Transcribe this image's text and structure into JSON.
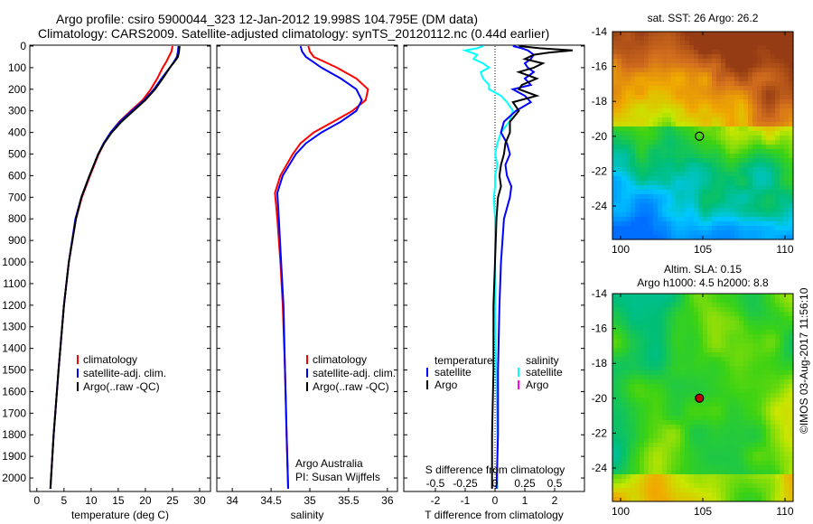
{
  "title_line1": "Argo profile: csiro 5900044_323 12-Jan-2012 19.998S 104.795E (DM data)",
  "title_line2": "Climatology: CARS2009. Satellite-adjusted climatology: synTS_20120112.nc (0.44d earlier)",
  "stamp": "©IMOS 03-Aug-2017 11:56:10",
  "colors": {
    "climatology": "#ff0000",
    "satellite": "#0000ff",
    "argo": "#000000",
    "sal_satellite": "#00ffff",
    "sal_argo": "#ff00ff"
  },
  "chart_data": [
    {
      "type": "line",
      "xlabel": "temperature (deg C)",
      "ylabel": "",
      "xlim": [
        -1.3,
        32
      ],
      "ylim": [
        2050,
        0
      ],
      "xticks": [
        0,
        5,
        10,
        15,
        20,
        25,
        30
      ],
      "yticks": [
        0,
        100,
        200,
        300,
        400,
        500,
        600,
        700,
        800,
        900,
        1000,
        1100,
        1200,
        1300,
        1400,
        1500,
        1600,
        1700,
        1800,
        1900,
        2000
      ],
      "legend": [
        "climatology",
        "satellite-adj. clim.",
        "Argo(..raw -QC)"
      ],
      "depth": [
        0,
        25,
        50,
        75,
        100,
        150,
        200,
        250,
        300,
        350,
        400,
        450,
        500,
        600,
        700,
        800,
        1000,
        1200,
        1500,
        1800,
        2050
      ],
      "series": [
        {
          "name": "climatology",
          "values": [
            25.0,
            24.8,
            24.3,
            23.8,
            23.2,
            22.2,
            21.0,
            19.5,
            17.3,
            15.2,
            13.6,
            12.4,
            11.4,
            9.8,
            8.3,
            7.2,
            5.9,
            5.0,
            4.0,
            3.1,
            2.5
          ]
        },
        {
          "name": "satellite-adj. clim.",
          "values": [
            26.1,
            26.0,
            25.8,
            25.2,
            24.5,
            23.0,
            21.6,
            19.8,
            17.5,
            15.3,
            13.6,
            12.3,
            11.3,
            9.7,
            8.2,
            7.1,
            5.9,
            5.0,
            4.0,
            3.1,
            2.5
          ]
        },
        {
          "name": "Argo(..raw -QC)",
          "values": [
            26.3,
            26.2,
            26.0,
            25.3,
            24.5,
            23.2,
            21.8,
            20.0,
            17.8,
            15.6,
            13.8,
            12.4,
            11.3,
            9.7,
            8.2,
            7.2,
            5.9,
            5.0,
            4.0,
            3.1,
            2.5
          ]
        }
      ]
    },
    {
      "type": "line",
      "xlabel": "salinity",
      "xlim": [
        33.8,
        36.13
      ],
      "ylim": [
        2050,
        0
      ],
      "xticks": [
        34,
        34.5,
        35,
        35.5,
        36
      ],
      "xticklabels": [
        "34",
        "34.5",
        "35",
        "35.5",
        "36"
      ],
      "legend": [
        "climatology",
        "satellite-adj. clim.",
        "Argo(..raw -QC)"
      ],
      "annotation": [
        "Argo Australia",
        "PI: Susan Wijffels"
      ],
      "depth": [
        0,
        25,
        50,
        75,
        100,
        150,
        200,
        250,
        300,
        350,
        400,
        450,
        500,
        600,
        680,
        800,
        1000,
        1200,
        1500,
        1800,
        2050
      ],
      "series": [
        {
          "name": "climatology",
          "values": [
            34.98,
            35.0,
            35.05,
            35.2,
            35.35,
            35.6,
            35.75,
            35.72,
            35.55,
            35.3,
            35.05,
            34.88,
            34.78,
            34.62,
            34.55,
            34.58,
            34.62,
            34.65,
            34.68,
            34.7,
            34.72
          ]
        },
        {
          "name": "satellite-adj. clim.",
          "values": [
            34.88,
            34.9,
            34.95,
            35.05,
            35.15,
            35.4,
            35.6,
            35.67,
            35.6,
            35.4,
            35.15,
            34.95,
            34.82,
            34.65,
            34.58,
            34.6,
            34.63,
            34.66,
            34.68,
            34.7,
            34.72
          ]
        },
        {
          "name": "Argo(..raw -QC)",
          "values": []
        }
      ]
    },
    {
      "type": "line",
      "xlabel": "T difference from climatology",
      "xlabel2": "S difference from climatology",
      "xlim": [
        -3.06,
        3.0
      ],
      "x2lim": [
        -0.765,
        0.75
      ],
      "ylim": [
        2050,
        0
      ],
      "xticks": [
        -2,
        -1,
        0,
        1,
        2
      ],
      "x2ticks": [
        -0.5,
        -0.25,
        0,
        0.25,
        0.5
      ],
      "x2ticklabels": [
        "-0.5",
        "-0.25",
        "0",
        "0.25",
        "0.5"
      ],
      "legend_temperature_title": "temperature",
      "legend_salinity_title": "salinity",
      "legend": [
        "satellite",
        "Argo",
        "satellite",
        "Argo"
      ],
      "depth": [
        0,
        10,
        20,
        30,
        40,
        60,
        80,
        100,
        120,
        150,
        180,
        200,
        230,
        260,
        300,
        350,
        400,
        450,
        500,
        550,
        600,
        650,
        700,
        800,
        1000,
        1200,
        1500,
        1800,
        2050
      ],
      "series": [
        {
          "name": "T satellite",
          "values": [
            0.6,
            0.9,
            1.1,
            1.2,
            1.3,
            1.2,
            1.0,
            1.1,
            1.3,
            1.0,
            1.2,
            0.6,
            1.0,
            1.2,
            0.7,
            0.3,
            0.2,
            0.4,
            0.5,
            0.35,
            0.4,
            0.55,
            0.5,
            0.3,
            0.2,
            0.15,
            0.1,
            0.1,
            0.05
          ]
        },
        {
          "name": "T Argo",
          "values": [
            0.8,
            1.5,
            2.6,
            1.8,
            1.3,
            1.0,
            1.6,
            1.3,
            0.8,
            1.4,
            0.9,
            0.8,
            1.4,
            0.6,
            0.8,
            0.5,
            0.5,
            0.35,
            0.3,
            0.2,
            0.15,
            0.2,
            0.1,
            0.05,
            0.0,
            -0.05,
            -0.05,
            -0.1,
            -0.1
          ]
        },
        {
          "name": "S satellite",
          "values": [
            -0.1,
            -0.15,
            -0.25,
            -0.2,
            -0.15,
            -0.18,
            -0.1,
            -0.05,
            -0.12,
            -0.1,
            -0.05,
            -0.05,
            0.05,
            0.1,
            0.15,
            0.12,
            0.05,
            0.02,
            0.0,
            0.02,
            0.0,
            0.0,
            -0.01,
            0.0,
            0.0,
            0.0,
            0.01,
            0.02,
            0.02
          ]
        }
      ]
    }
  ],
  "map_top": {
    "title": "sat. SST: 26 Argo: 26.2",
    "xticks": [
      100,
      105,
      110
    ],
    "yticks": [
      -14,
      -16,
      -18,
      -20,
      -22,
      -24
    ],
    "yticklabels": [
      "-14",
      "-16",
      "-18",
      "-20",
      "-22",
      "-24"
    ],
    "marker": {
      "lon": 104.795,
      "lat": -19.998
    }
  },
  "map_bottom": {
    "title1": "Altim. SLA: 0.15",
    "title2": "Argo h1000: 4.5 h2000: 8.8",
    "xticks": [
      100,
      105,
      110
    ],
    "yticks": [
      -14,
      -16,
      -18,
      -20,
      -22,
      -24
    ],
    "yticklabels": [
      "-14",
      "-16",
      "-18",
      "-20",
      "-22",
      "-24"
    ],
    "marker": {
      "lon": 104.795,
      "lat": -19.998
    }
  }
}
